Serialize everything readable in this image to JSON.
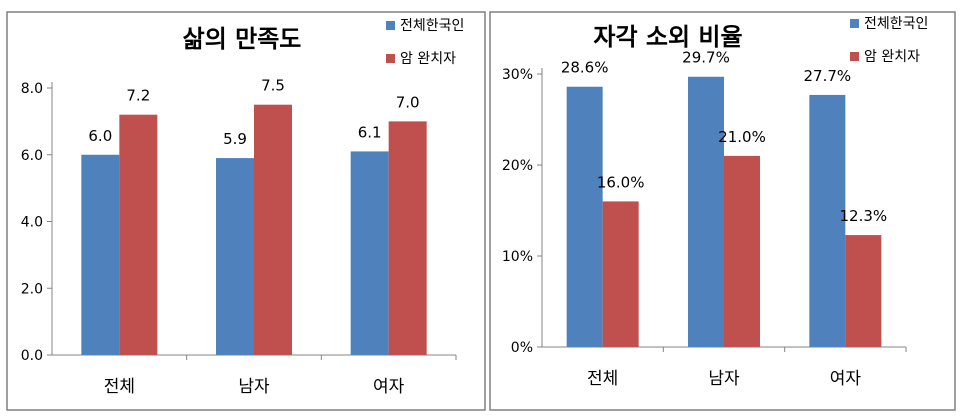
{
  "chart_data": [
    {
      "type": "bar",
      "title": "삶의 만족도",
      "categories": [
        "전체",
        "남자",
        "여자"
      ],
      "series": [
        {
          "name": "전체한국인",
          "values": [
            6.0,
            5.9,
            6.1
          ],
          "labels": [
            "6.0",
            "5.9",
            "6.1"
          ],
          "color": "#4F81BD"
        },
        {
          "name": "암 완치자",
          "values": [
            7.2,
            7.5,
            7.0
          ],
          "labels": [
            "7.2",
            "7.5",
            "7.0"
          ],
          "color": "#C0504D"
        }
      ],
      "ylim": [
        0,
        8
      ],
      "yticks": [
        0,
        2,
        4,
        6,
        8
      ],
      "ytick_labels": [
        "0.0",
        "2.0",
        "4.0",
        "6.0",
        "8.0"
      ],
      "grid": false,
      "legend_position": "top-right"
    },
    {
      "type": "bar",
      "title": "자각 소외 비율",
      "categories": [
        "전체",
        "남자",
        "여자"
      ],
      "series": [
        {
          "name": "전체한국인",
          "values": [
            28.6,
            29.7,
            27.7
          ],
          "labels": [
            "28.6%",
            "29.7%",
            "27.7%"
          ],
          "color": "#4F81BD"
        },
        {
          "name": "암 완치자",
          "values": [
            16.0,
            21.0,
            12.3
          ],
          "labels": [
            "16.0%",
            "21.0%",
            "12.3%"
          ],
          "color": "#C0504D"
        }
      ],
      "ylim": [
        0,
        30
      ],
      "yticks": [
        0,
        10,
        20,
        30
      ],
      "ytick_labels": [
        "0%",
        "10%",
        "20%",
        "30%"
      ],
      "grid": false,
      "legend_position": "top-right"
    }
  ]
}
